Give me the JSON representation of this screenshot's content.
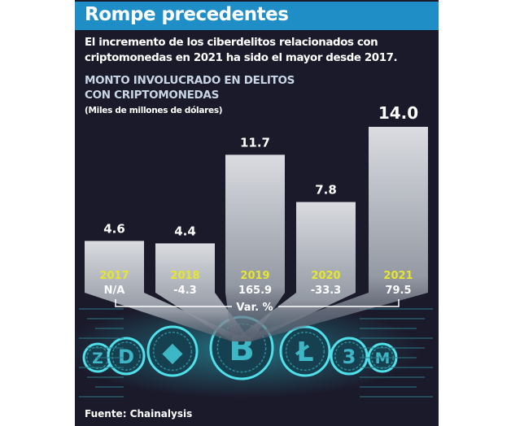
{
  "header": {
    "title": "Rompe precedentes"
  },
  "subtitle": "El incremento de los ciberdelitos relacionados con criptomonedas en 2021 ha sido el mayor desde 2017.",
  "source": "Fuente: Chainalysis",
  "colors": {
    "header": "#1f8ec6",
    "background": "#1b1a2b",
    "year": "#e6e62a",
    "bar": "#c9ccd4",
    "coin_glow": "#3fd6e0"
  },
  "chart_data": {
    "type": "bar",
    "title": "MONTO INVOLUCRADO EN DELITOS CON CRIPTOMONEDAS",
    "title_lines": [
      "MONTO INVOLUCRADO EN DELITOS",
      "CON CRIPTOMONEDAS"
    ],
    "ylabel": "(Miles de millones de dólares)",
    "categories": [
      "2017",
      "2018",
      "2019",
      "2020",
      "2021"
    ],
    "values": [
      4.6,
      4.4,
      11.7,
      7.8,
      14.0
    ],
    "value_labels": [
      "4.6",
      "4.4",
      "11.7",
      "7.8",
      "14.0"
    ],
    "variation_label": "Var. %",
    "variation": [
      "N/A",
      "-4.3",
      "165.9",
      "-33.3",
      "79.5"
    ],
    "ylim": [
      0,
      14.0
    ],
    "grid": false,
    "legend": "none"
  }
}
